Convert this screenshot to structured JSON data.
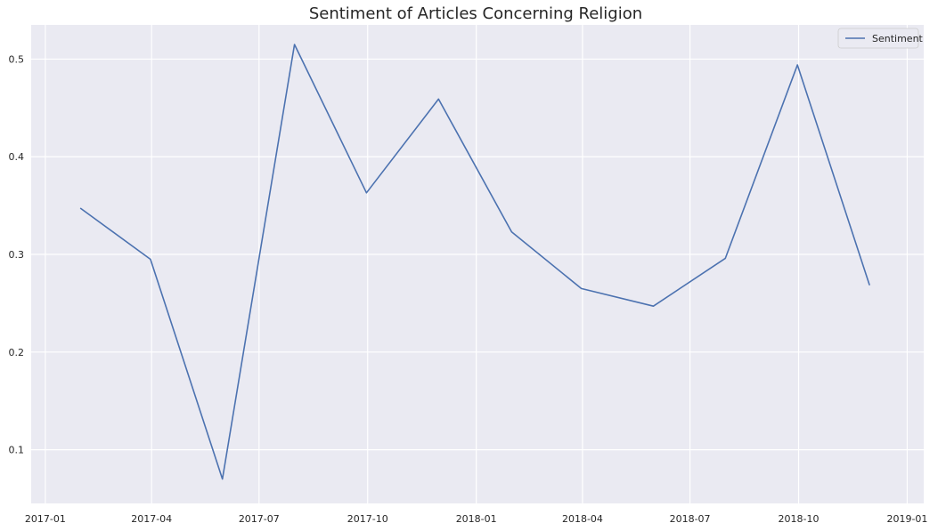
{
  "chart_data": {
    "type": "line",
    "title": "Sentiment of Articles Concerning Religion",
    "xlabel": "",
    "ylabel": "",
    "x_axis_type": "date",
    "xlim": [
      "2016-12-20",
      "2019-01-15"
    ],
    "ylim": [
      0.045,
      0.535
    ],
    "x_ticks": [
      "2017-01",
      "2017-04",
      "2017-07",
      "2017-10",
      "2018-01",
      "2018-04",
      "2018-07",
      "2018-10",
      "2019-01"
    ],
    "y_ticks": [
      0.1,
      0.2,
      0.3,
      0.4,
      0.5
    ],
    "y_tick_labels": [
      "0.1",
      "0.2",
      "0.3",
      "0.4",
      "0.5"
    ],
    "grid": true,
    "legend_position": "top-right",
    "series": [
      {
        "name": "Sentiment",
        "color": "#4c72b0",
        "points": [
          {
            "x": "2017-01-31",
            "y": 0.347
          },
          {
            "x": "2017-03-31",
            "y": 0.295
          },
          {
            "x": "2017-05-31",
            "y": 0.07
          },
          {
            "x": "2017-07-31",
            "y": 0.515
          },
          {
            "x": "2017-09-30",
            "y": 0.363
          },
          {
            "x": "2017-11-30",
            "y": 0.459
          },
          {
            "x": "2018-01-31",
            "y": 0.323
          },
          {
            "x": "2018-03-31",
            "y": 0.265
          },
          {
            "x": "2018-05-31",
            "y": 0.247
          },
          {
            "x": "2018-07-31",
            "y": 0.296
          },
          {
            "x": "2018-09-30",
            "y": 0.494
          },
          {
            "x": "2018-11-30",
            "y": 0.269
          }
        ]
      }
    ]
  },
  "colors": {
    "plot_background": "#eaeaf2",
    "grid": "#ffffff",
    "text": "#262626",
    "line": "#4c72b0"
  }
}
